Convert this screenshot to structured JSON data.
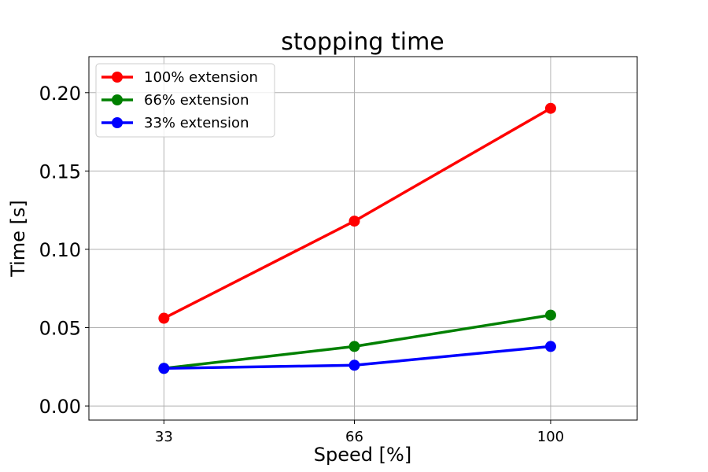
{
  "chart_data": {
    "type": "line",
    "title": "stopping time",
    "xlabel": "Speed [%]",
    "ylabel": "Time [s]",
    "x": [
      33,
      66,
      100
    ],
    "x_tick_labels": [
      "33",
      "66",
      "100"
    ],
    "y_ticks": [
      0.0,
      0.05,
      0.1,
      0.15,
      0.2
    ],
    "y_tick_labels": [
      "0.00",
      "0.05",
      "0.10",
      "0.15",
      "0.20"
    ],
    "xlim": [
      20,
      115
    ],
    "ylim": [
      -0.009,
      0.223
    ],
    "grid": true,
    "legend_position": "upper-left",
    "series": [
      {
        "name": "100% extension",
        "color": "#ff0000",
        "values": [
          0.056,
          0.118,
          0.19
        ]
      },
      {
        "name": "66% extension",
        "color": "#008000",
        "values": [
          0.024,
          0.038,
          0.058
        ]
      },
      {
        "name": "33% extension",
        "color": "#0000ff",
        "values": [
          0.024,
          0.026,
          0.038
        ]
      }
    ]
  }
}
